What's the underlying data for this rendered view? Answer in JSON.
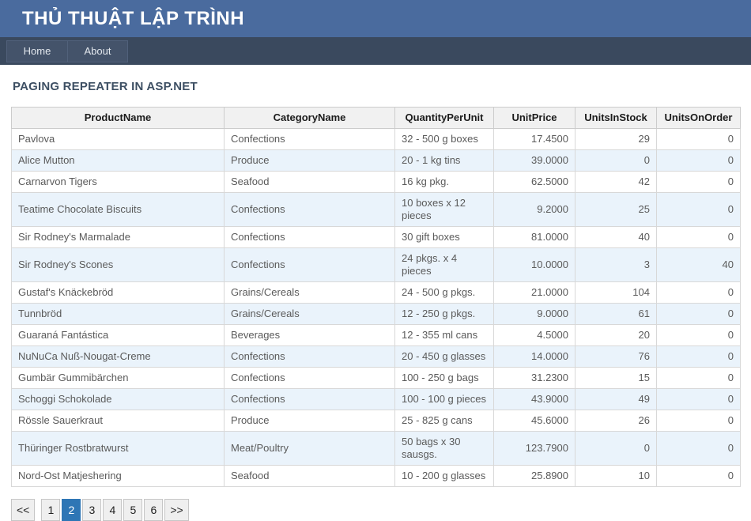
{
  "header": {
    "title": "THỦ THUẬT LẬP TRÌNH"
  },
  "nav": {
    "items": [
      {
        "label": "Home"
      },
      {
        "label": "About"
      }
    ]
  },
  "page": {
    "heading": "PAGING REPEATER IN ASP.NET"
  },
  "table": {
    "columns": [
      "ProductName",
      "CategoryName",
      "QuantityPerUnit",
      "UnitPrice",
      "UnitsInStock",
      "UnitsOnOrder"
    ],
    "rows": [
      [
        "Pavlova",
        "Confections",
        "32 - 500 g boxes",
        "17.4500",
        "29",
        "0"
      ],
      [
        "Alice Mutton",
        "Produce",
        "20 - 1 kg tins",
        "39.0000",
        "0",
        "0"
      ],
      [
        "Carnarvon Tigers",
        "Seafood",
        "16 kg pkg.",
        "62.5000",
        "42",
        "0"
      ],
      [
        "Teatime Chocolate Biscuits",
        "Confections",
        "10 boxes x 12 pieces",
        "9.2000",
        "25",
        "0"
      ],
      [
        "Sir Rodney's Marmalade",
        "Confections",
        "30 gift boxes",
        "81.0000",
        "40",
        "0"
      ],
      [
        "Sir Rodney's Scones",
        "Confections",
        "24 pkgs. x 4 pieces",
        "10.0000",
        "3",
        "40"
      ],
      [
        "Gustaf's Knäckebröd",
        "Grains/Cereals",
        "24 - 500 g pkgs.",
        "21.0000",
        "104",
        "0"
      ],
      [
        "Tunnbröd",
        "Grains/Cereals",
        "12 - 250 g pkgs.",
        "9.0000",
        "61",
        "0"
      ],
      [
        "Guaraná Fantástica",
        "Beverages",
        "12 - 355 ml cans",
        "4.5000",
        "20",
        "0"
      ],
      [
        "NuNuCa Nuß-Nougat-Creme",
        "Confections",
        "20 - 450 g glasses",
        "14.0000",
        "76",
        "0"
      ],
      [
        "Gumbär Gummibärchen",
        "Confections",
        "100 - 250 g bags",
        "31.2300",
        "15",
        "0"
      ],
      [
        "Schoggi Schokolade",
        "Confections",
        "100 - 100 g pieces",
        "43.9000",
        "49",
        "0"
      ],
      [
        "Rössle Sauerkraut",
        "Produce",
        "25 - 825 g cans",
        "45.6000",
        "26",
        "0"
      ],
      [
        "Thüringer Rostbratwurst",
        "Meat/Poultry",
        "50 bags x 30 sausgs.",
        "123.7900",
        "0",
        "0"
      ],
      [
        "Nord-Ost Matjeshering",
        "Seafood",
        "10 - 200 g glasses",
        "25.8900",
        "10",
        "0"
      ]
    ]
  },
  "pager": {
    "buttons": [
      "<<",
      "1",
      "2",
      "3",
      "4",
      "5",
      "6",
      ">>"
    ],
    "active": "2"
  },
  "colors": {
    "banner_bg": "#4a6b9e",
    "navbar_bg": "#3a495e",
    "nav_tab_bg": "#44536a",
    "heading_text": "#3d4f63",
    "table_header_bg": "#f1f1f1",
    "row_alt_bg": "#eaf3fb",
    "cell_text": "#5a5a5a",
    "pager_active_bg": "#2e76b5",
    "pager_btn_bg": "#efefef"
  }
}
